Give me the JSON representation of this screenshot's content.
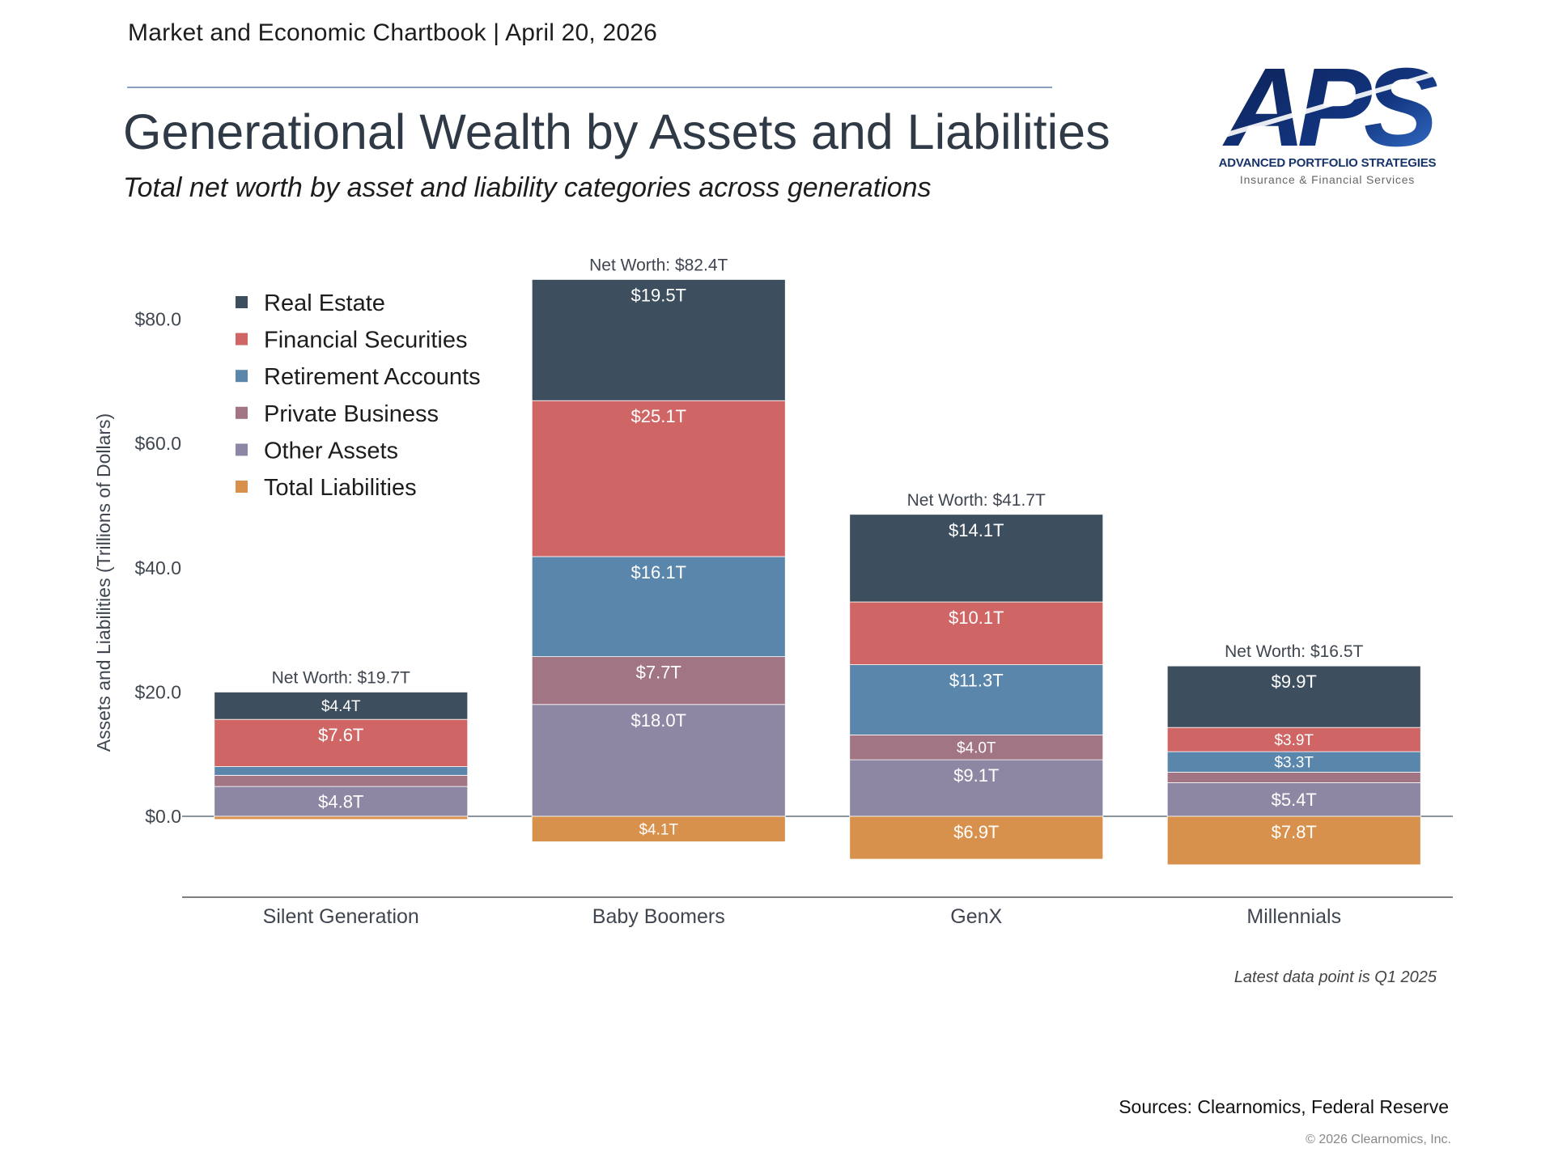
{
  "header": {
    "chartbook_line": "Market and Economic Chartbook | April 20, 2026",
    "title": "Generational Wealth by Assets and Liabilities",
    "subtitle": "Total net worth by asset and liability categories across generations"
  },
  "logo": {
    "mark": "APS",
    "line1": "ADVANCED PORTFOLIO STRATEGIES",
    "line2": "Insurance & Financial Services",
    "colors": {
      "dark": "#0f2a6b",
      "light": "#3b78d6"
    }
  },
  "chart_data": {
    "type": "bar",
    "stacked": true,
    "ylabel": "Assets and Liabilities (Trillions of Dollars)",
    "xlabel": "",
    "ylim": [
      -13,
      87
    ],
    "yticks": [
      0,
      20,
      40,
      60,
      80
    ],
    "ytick_labels": [
      "$0.0",
      "$20.0",
      "$40.0",
      "$60.0",
      "$80.0"
    ],
    "legend_position": "top-left",
    "grid": false,
    "categories": [
      "Silent Generation",
      "Baby Boomers",
      "GenX",
      "Millennials"
    ],
    "net_worth_labels": [
      "Net Worth: $19.7T",
      "Net Worth: $82.4T",
      "Net Worth: $41.7T",
      "Net Worth: $16.5T"
    ],
    "series": [
      {
        "name": "Other Assets",
        "color": "#8e87a3",
        "values": [
          4.8,
          18.0,
          9.1,
          5.4
        ],
        "labels": [
          "$4.8T",
          "$18.0T",
          "$9.1T",
          "$5.4T"
        ]
      },
      {
        "name": "Private Business",
        "color": "#a17583",
        "values": [
          1.8,
          7.7,
          4.0,
          1.7
        ],
        "labels": [
          "",
          "$7.7T",
          "$4.0T",
          ""
        ]
      },
      {
        "name": "Retirement Accounts",
        "color": "#5b86ac",
        "values": [
          1.4,
          16.1,
          11.3,
          3.3
        ],
        "labels": [
          "",
          "$16.1T",
          "$11.3T",
          "$3.3T"
        ]
      },
      {
        "name": "Financial Securities",
        "color": "#cf6665",
        "values": [
          7.6,
          25.1,
          10.1,
          3.9
        ],
        "labels": [
          "$7.6T",
          "$25.1T",
          "$10.1T",
          "$3.9T"
        ]
      },
      {
        "name": "Real Estate",
        "color": "#3d4f5e",
        "values": [
          4.4,
          19.5,
          14.1,
          9.9
        ],
        "labels": [
          "$4.4T",
          "$19.5T",
          "$14.1T",
          "$9.9T"
        ]
      },
      {
        "name": "Total Liabilities",
        "color": "#d8914c",
        "values": [
          -0.5,
          -4.1,
          -6.9,
          -7.8
        ],
        "labels": [
          "",
          "$4.1T",
          "$6.9T",
          "$7.8T"
        ]
      }
    ],
    "legend_order": [
      "Real Estate",
      "Financial Securities",
      "Retirement Accounts",
      "Private Business",
      "Other Assets",
      "Total Liabilities"
    ]
  },
  "footer": {
    "note": "Latest data point is Q1 2025",
    "sources": "Sources: Clearnomics, Federal Reserve",
    "copyright": "© 2026 Clearnomics, Inc."
  }
}
